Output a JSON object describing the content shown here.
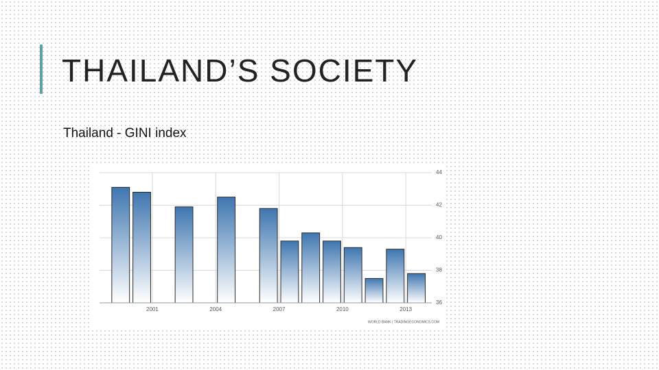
{
  "title": "THAILAND’S SOCIETY",
  "subtitle": "Thailand - GINI index",
  "chart_data": {
    "type": "bar",
    "x": [
      1999,
      2000,
      2002,
      2004,
      2006,
      2007,
      2008,
      2009,
      2010,
      2011,
      2012,
      2013
    ],
    "values": [
      43.1,
      42.8,
      41.9,
      42.5,
      41.8,
      39.8,
      40.3,
      39.8,
      39.4,
      37.5,
      39.3,
      37.8
    ],
    "color": "#3f76b0",
    "xlim": [
      1998.5,
      2014.1
    ],
    "xticks": [
      2001,
      2004,
      2007,
      2010,
      2013
    ],
    "ylim": [
      36,
      44
    ],
    "yticks": [
      36,
      38,
      40,
      42,
      44
    ],
    "grid": true,
    "source": "WORLD BANK | TRADINGECONOMICS.COM"
  }
}
